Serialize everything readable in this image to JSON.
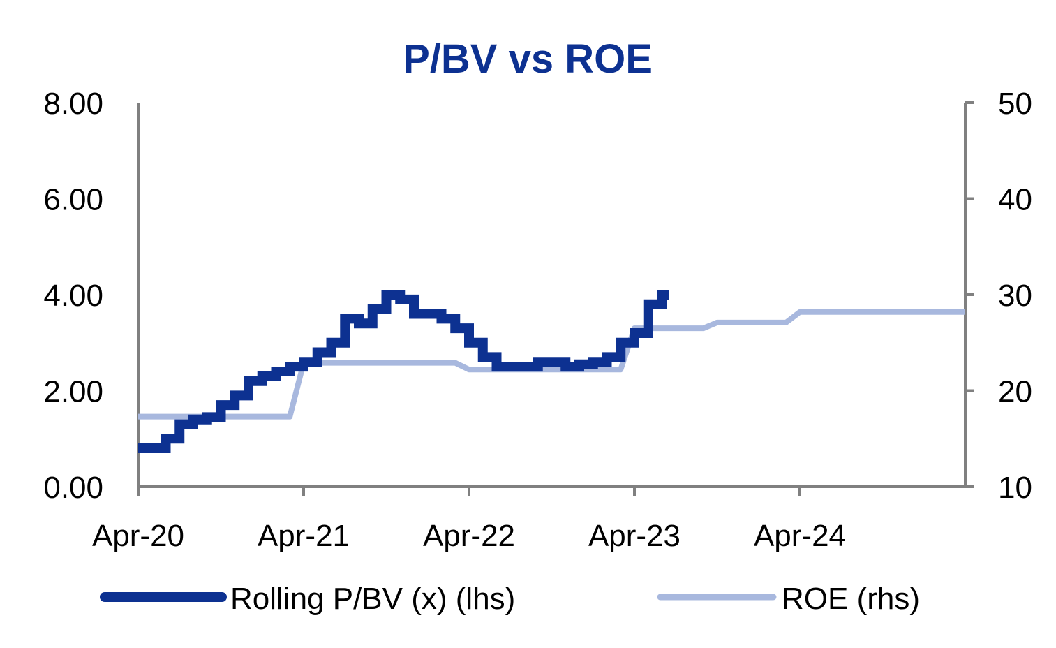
{
  "chart_data": {
    "type": "line",
    "title": "P/BV vs ROE",
    "x_tick_labels": [
      "Apr-20",
      "Apr-21",
      "Apr-22",
      "Apr-23",
      "Apr-24"
    ],
    "x_range": [
      "2020-04",
      "2025-04"
    ],
    "y_left": {
      "range": [
        0,
        8
      ],
      "ticks": [
        "0.00",
        "2.00",
        "4.00",
        "6.00",
        "8.00"
      ]
    },
    "y_right": {
      "range": [
        10,
        50
      ],
      "ticks": [
        "10",
        "20",
        "30",
        "40",
        "50"
      ]
    },
    "legend_position": "bottom",
    "grid": false,
    "series": [
      {
        "name": "Rolling P/BV (x) (lhs)",
        "axis": "left",
        "color": "#0D3191",
        "style": "thick-stepped",
        "x": [
          "2020-04",
          "2020-05",
          "2020-06",
          "2020-07",
          "2020-08",
          "2020-09",
          "2020-10",
          "2020-11",
          "2020-12",
          "2021-01",
          "2021-02",
          "2021-03",
          "2021-04",
          "2021-05",
          "2021-06",
          "2021-07",
          "2021-08",
          "2021-09",
          "2021-10",
          "2021-11",
          "2021-12",
          "2022-01",
          "2022-02",
          "2022-03",
          "2022-04",
          "2022-05",
          "2022-06",
          "2022-07",
          "2022-08",
          "2022-09",
          "2022-10",
          "2022-11",
          "2022-12",
          "2023-01",
          "2023-02",
          "2023-03",
          "2023-04",
          "2023-05",
          "2023-06"
        ],
        "values": [
          0.8,
          0.8,
          1.0,
          1.3,
          1.4,
          1.45,
          1.7,
          1.9,
          2.2,
          2.3,
          2.4,
          2.5,
          2.6,
          2.8,
          3.0,
          3.5,
          3.4,
          3.7,
          4.0,
          3.9,
          3.6,
          3.6,
          3.5,
          3.3,
          3.0,
          2.7,
          2.5,
          2.5,
          2.5,
          2.6,
          2.6,
          2.5,
          2.55,
          2.6,
          2.7,
          3.0,
          3.2,
          3.8,
          4.0
        ]
      },
      {
        "name": "ROE (rhs)",
        "axis": "right",
        "color": "#A8B8DE",
        "x": [
          "2020-04",
          "2021-03",
          "2021-04",
          "2021-05",
          "2022-03",
          "2022-04",
          "2022-05",
          "2023-03",
          "2023-04",
          "2023-05",
          "2023-06",
          "2023-07",
          "2023-08",
          "2023-09",
          "2023-10",
          "2024-03",
          "2024-04",
          "2024-05",
          "2025-04"
        ],
        "values": [
          17.3,
          17.3,
          22.9,
          22.9,
          22.9,
          22.2,
          22.2,
          22.2,
          26.5,
          26.5,
          26.5,
          26.5,
          26.5,
          26.5,
          27.1,
          27.1,
          28.2,
          28.2,
          28.2
        ]
      }
    ]
  },
  "colors": {
    "title": "#0D3191",
    "axis": "#808080"
  }
}
